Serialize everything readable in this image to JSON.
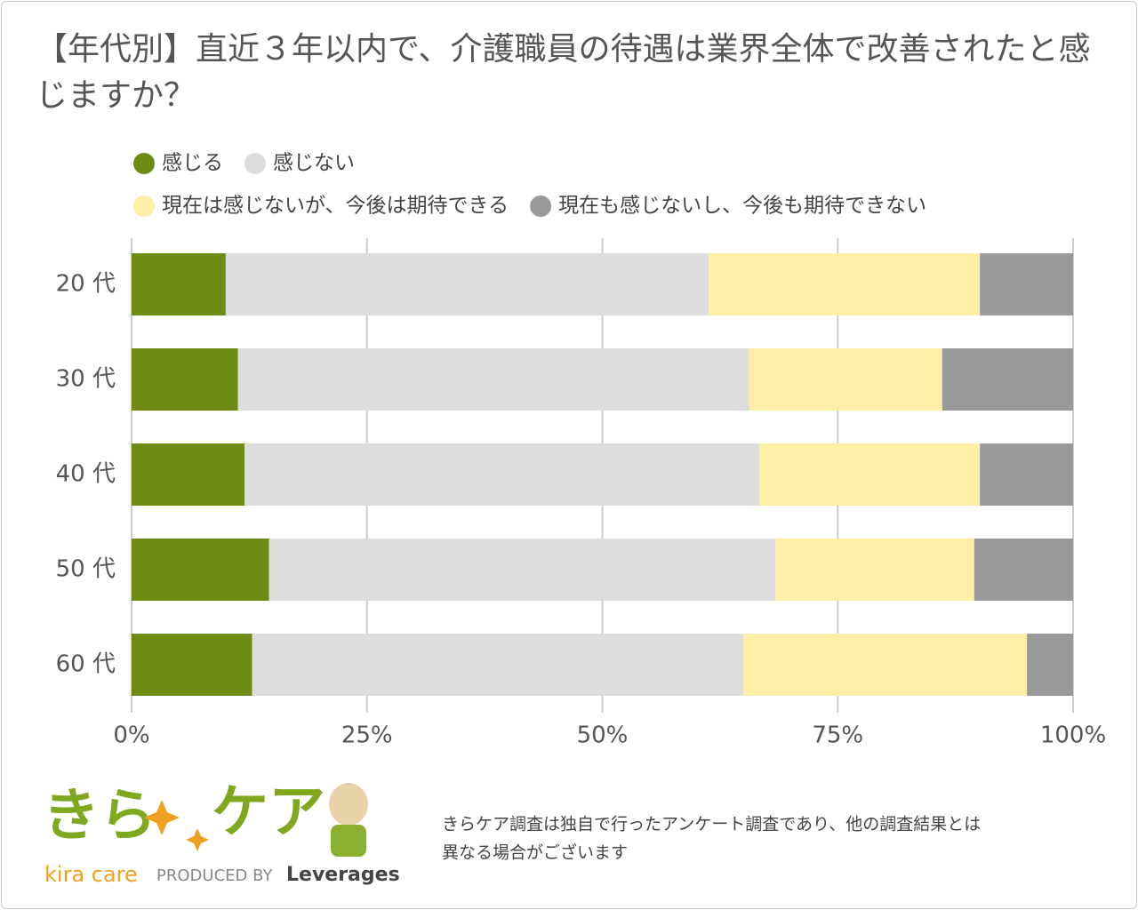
{
  "chart_data": {
    "type": "stacked-bar-horizontal",
    "title": "【年代別】直近３年以内で、介護職員の待遇は業界全体で改善されたと感じますか？",
    "categories": [
      "20 代",
      "30 代",
      "40 代",
      "50 代",
      "60 代"
    ],
    "series": [
      {
        "name": "感じる",
        "color": "#6e8c14",
        "values": [
          10.0,
          11.3,
          12.0,
          14.6,
          12.8
        ]
      },
      {
        "name": "感じない",
        "color": "#dddddd",
        "values": [
          51.3,
          54.3,
          54.7,
          53.8,
          52.2
        ]
      },
      {
        "name": "現在は感じないが、今後は期待できる",
        "color": "#ffeea6",
        "values": [
          28.8,
          20.5,
          23.4,
          21.1,
          30.1
        ]
      },
      {
        "name": "現在も感じないし、今後も期待できない",
        "color": "#999999",
        "values": [
          9.9,
          13.9,
          9.9,
          10.5,
          4.9
        ]
      }
    ],
    "xlim": [
      0,
      100
    ],
    "xticks": [
      {
        "value": 0,
        "label": "0%"
      },
      {
        "value": 25,
        "label": "25%"
      },
      {
        "value": 50,
        "label": "50%"
      },
      {
        "value": 75,
        "label": "75%"
      },
      {
        "value": 100,
        "label": "100%"
      }
    ],
    "grid": true
  },
  "logo": {
    "left": "きら",
    "right": "ケア",
    "sub": "kira care",
    "produced": "PRODUCED BY",
    "brand": "Leverages"
  },
  "note": [
    "きらケア調査は独自で行ったアンケート調査であり、他の調査結果とは",
    "異なる場合がございます"
  ]
}
